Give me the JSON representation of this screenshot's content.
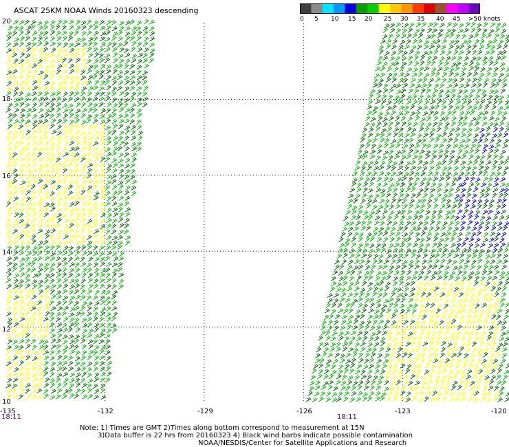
{
  "title": "ASCAT 25KM NOAA Winds 20160323 descending",
  "colorbar": {
    "colors": [
      "#3f3f3f",
      "#8a8a8a",
      "#00e5ff",
      "#0096ff",
      "#0000e0",
      "#00a000",
      "#00d000",
      "#ffff00",
      "#ffc800",
      "#ff9600",
      "#ff3c00",
      "#e00000",
      "#a05030",
      "#ff00ff",
      "#c000ff",
      "#7000c0"
    ],
    "ticks": [
      "0",
      "5",
      "10",
      "15",
      "20",
      "25",
      "30",
      "35",
      "40",
      "45",
      ">50 knots"
    ]
  },
  "axes": {
    "lat_labels": [
      "20",
      "18",
      "16",
      "14",
      "12",
      "10"
    ],
    "lon_labels": [
      "-135",
      "-132",
      "-129",
      "-126",
      "-123",
      "-120"
    ],
    "time_labels": [
      "18:11",
      "18:11"
    ]
  },
  "notes": [
    "Note: 1) Times are GMT 2)Times along bottom correspond to measurement at 15N",
    "3)Data buffer is 22 hrs from 20160323 4) Black wind barbs indicate possible contamination",
    "NOAA/NESDIS/Center for Satellite Applications and Research"
  ],
  "map": {
    "lon_range": [
      -135,
      -120
    ],
    "lat_range": [
      10,
      20
    ],
    "barb_colors": {
      "yellow": "#ffff00",
      "green": "#00b400",
      "dark_green": "#006400",
      "blue": "#0000c8"
    }
  }
}
